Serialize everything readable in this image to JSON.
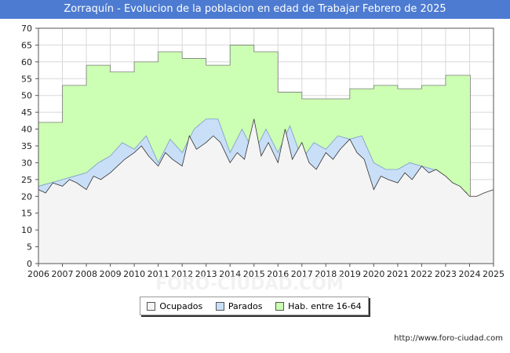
{
  "title": "Zorraquín - Evolucion de la poblacion en edad de Trabajar Febrero de 2025",
  "footer": "http://www.foro-ciudad.com",
  "watermark": "FORO-CIUDAD.COM",
  "chart_data": {
    "type": "area",
    "title": "Zorraquín - Evolucion de la poblacion en edad de Trabajar Febrero de 2025",
    "xlabel": "",
    "ylabel": "",
    "xlim": [
      2006,
      2025
    ],
    "ylim": [
      0,
      70
    ],
    "x_ticks": [
      "2006",
      "2007",
      "2008",
      "2009",
      "2010",
      "2011",
      "2012",
      "2013",
      "2014",
      "2015",
      "2016",
      "2017",
      "2018",
      "2019",
      "2020",
      "2021",
      "2022",
      "2023",
      "2024",
      "2025"
    ],
    "y_ticks": [
      "0",
      "5",
      "10",
      "15",
      "20",
      "25",
      "30",
      "35",
      "40",
      "45",
      "50",
      "55",
      "60",
      "65",
      "70"
    ],
    "grid": true,
    "legend_placement": "bottom-center",
    "colors": {
      "hab": "#ccffb3",
      "hab_line": "#7a7a7a",
      "parados": "#c9dff7",
      "parados_line": "#7a9ac8",
      "ocupados": "#f4f4f4",
      "ocupados_line": "#333333",
      "grid": "#d8d8d8"
    },
    "series": [
      {
        "name": "Hab. entre 16-64",
        "key": "hab",
        "x": [
          2006.0,
          2007.0,
          2008.0,
          2009.0,
          2010.0,
          2011.0,
          2012.0,
          2013.0,
          2014.0,
          2015.0,
          2016.0,
          2017.0,
          2018.0,
          2019.0,
          2020.0,
          2021.0,
          2022.0,
          2023.0,
          2024.0
        ],
        "values": [
          42,
          53,
          59,
          57,
          60,
          63,
          61,
          59,
          65,
          63,
          51,
          49,
          49,
          52,
          53,
          52,
          53,
          56,
          56
        ]
      },
      {
        "name": "Parados",
        "key": "parados",
        "x": [
          2006.0,
          2006.5,
          2007.0,
          2007.5,
          2008.0,
          2008.5,
          2009.0,
          2009.5,
          2010.0,
          2010.5,
          2011.0,
          2011.5,
          2012.0,
          2012.5,
          2013.0,
          2013.5,
          2014.0,
          2014.5,
          2015.0,
          2015.5,
          2016.0,
          2016.5,
          2017.0,
          2017.5,
          2018.0,
          2018.5,
          2019.0,
          2019.5,
          2020.0,
          2020.5,
          2021.0,
          2021.5,
          2022.0,
          2022.5,
          2023.0,
          2023.5,
          2023.9
        ],
        "values": [
          23,
          24,
          25,
          26,
          27,
          30,
          32,
          36,
          34,
          38,
          30,
          37,
          33,
          40,
          43,
          43,
          33,
          40,
          33,
          40,
          33,
          41,
          31,
          36,
          34,
          38,
          37,
          38,
          30,
          28,
          28,
          30,
          29,
          28,
          25,
          23,
          21
        ]
      },
      {
        "name": "Ocupados",
        "key": "ocupados",
        "x": [
          2006.0,
          2006.3,
          2006.6,
          2007.0,
          2007.3,
          2007.6,
          2008.0,
          2008.3,
          2008.6,
          2009.0,
          2009.3,
          2009.6,
          2010.0,
          2010.3,
          2010.6,
          2011.0,
          2011.3,
          2011.6,
          2012.0,
          2012.3,
          2012.6,
          2013.0,
          2013.3,
          2013.6,
          2014.0,
          2014.3,
          2014.6,
          2015.0,
          2015.3,
          2015.6,
          2016.0,
          2016.3,
          2016.6,
          2017.0,
          2017.3,
          2017.6,
          2018.0,
          2018.3,
          2018.6,
          2019.0,
          2019.3,
          2019.6,
          2020.0,
          2020.3,
          2020.6,
          2021.0,
          2021.3,
          2021.6,
          2022.0,
          2022.3,
          2022.6,
          2023.0,
          2023.3,
          2023.6,
          2024.0,
          2024.3,
          2024.6,
          2025.0
        ],
        "values": [
          22,
          21,
          24,
          23,
          25,
          24,
          22,
          26,
          25,
          27,
          29,
          31,
          33,
          35,
          32,
          29,
          33,
          31,
          29,
          38,
          34,
          36,
          38,
          36,
          30,
          33,
          31,
          43,
          32,
          36,
          30,
          40,
          31,
          36,
          30,
          28,
          33,
          31,
          34,
          37,
          33,
          31,
          22,
          26,
          25,
          24,
          27,
          25,
          29,
          27,
          28,
          26,
          24,
          23,
          20,
          20,
          21,
          22
        ]
      }
    ]
  },
  "legend": [
    {
      "label": "Ocupados",
      "key": "ocupados"
    },
    {
      "label": "Parados",
      "key": "parados"
    },
    {
      "label": "Hab. entre 16-64",
      "key": "hab"
    }
  ]
}
